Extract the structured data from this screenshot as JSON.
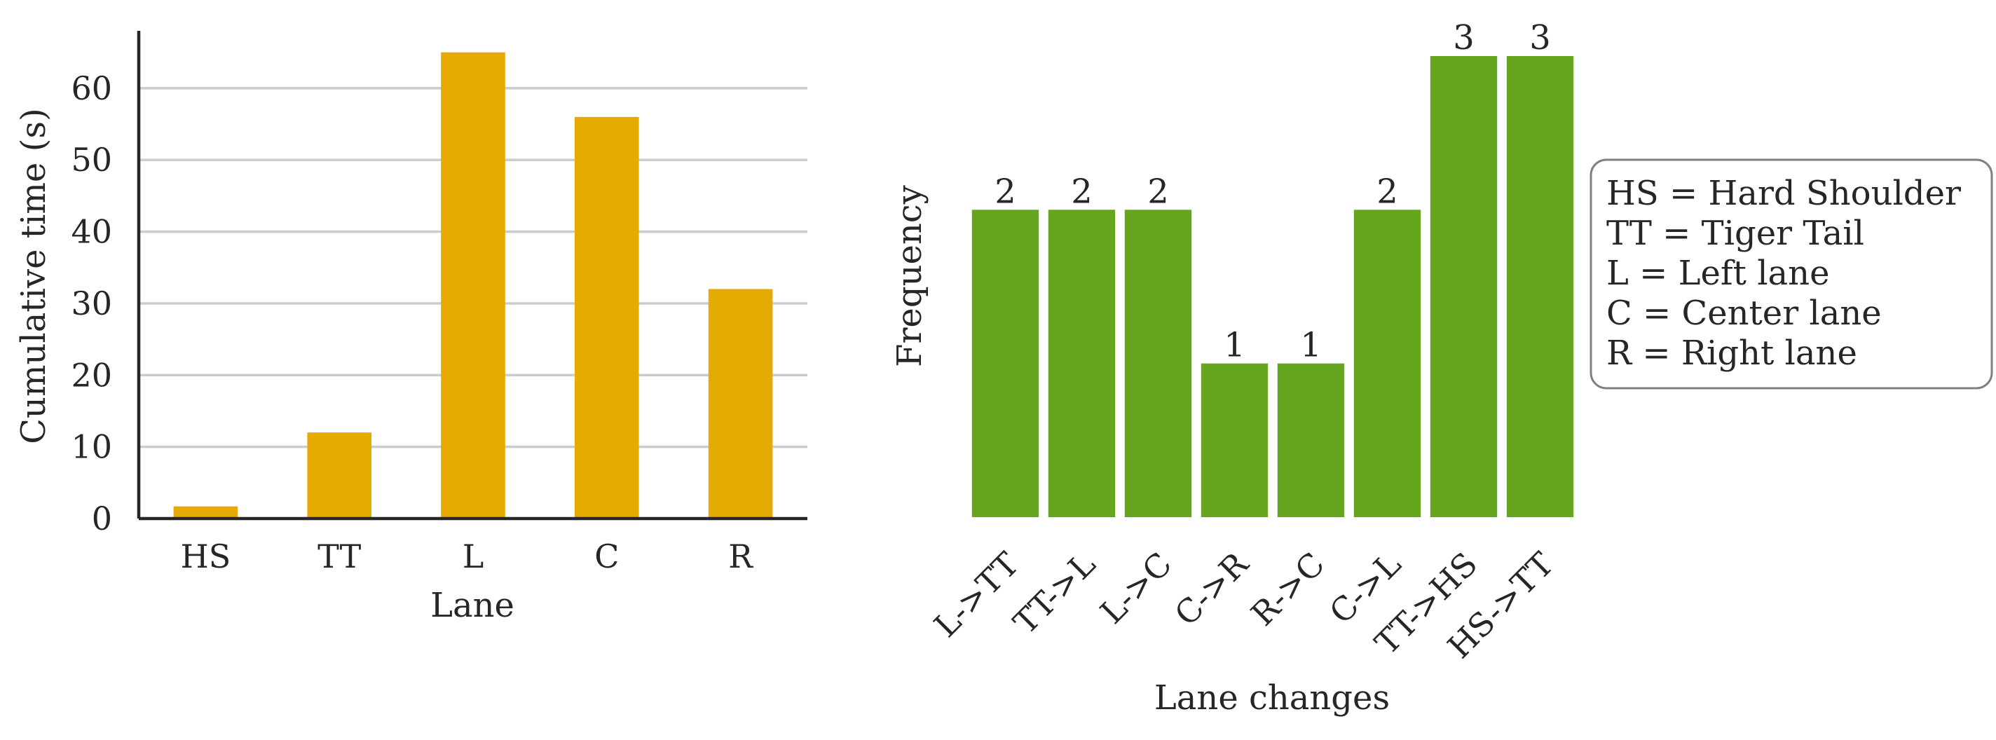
{
  "chart_data": [
    {
      "type": "bar",
      "categories": [
        "HS",
        "TT",
        "L",
        "C",
        "R"
      ],
      "values": [
        1.7,
        12,
        65,
        56,
        32
      ],
      "xlabel": "Lane",
      "ylabel": "Cumulative time (s)",
      "ylim": [
        0,
        68
      ],
      "yticks": [
        0,
        10,
        20,
        30,
        40,
        50,
        60
      ],
      "grid": "horizontal",
      "bar_color": "#E6AB02"
    },
    {
      "type": "bar",
      "categories": [
        "L->TT",
        "TT->L",
        "L->C",
        "C->R",
        "R->C",
        "C->L",
        "TT->HS",
        "HS->TT"
      ],
      "values": [
        2,
        2,
        2,
        1,
        1,
        2,
        3,
        3
      ],
      "data_labels": [
        "2",
        "2",
        "2",
        "1",
        "1",
        "2",
        "3",
        "3"
      ],
      "xlabel": "Lane changes",
      "ylabel": "Frequency",
      "ylim": [
        0,
        3
      ],
      "grid": "off",
      "bar_color": "#66A61E",
      "annotation_box": {
        "lines": [
          "HS = Hard Shoulder",
          "TT = Tiger Tail",
          "L = Left lane",
          "C = Center lane",
          "R = Right lane"
        ],
        "position": "right"
      }
    }
  ]
}
